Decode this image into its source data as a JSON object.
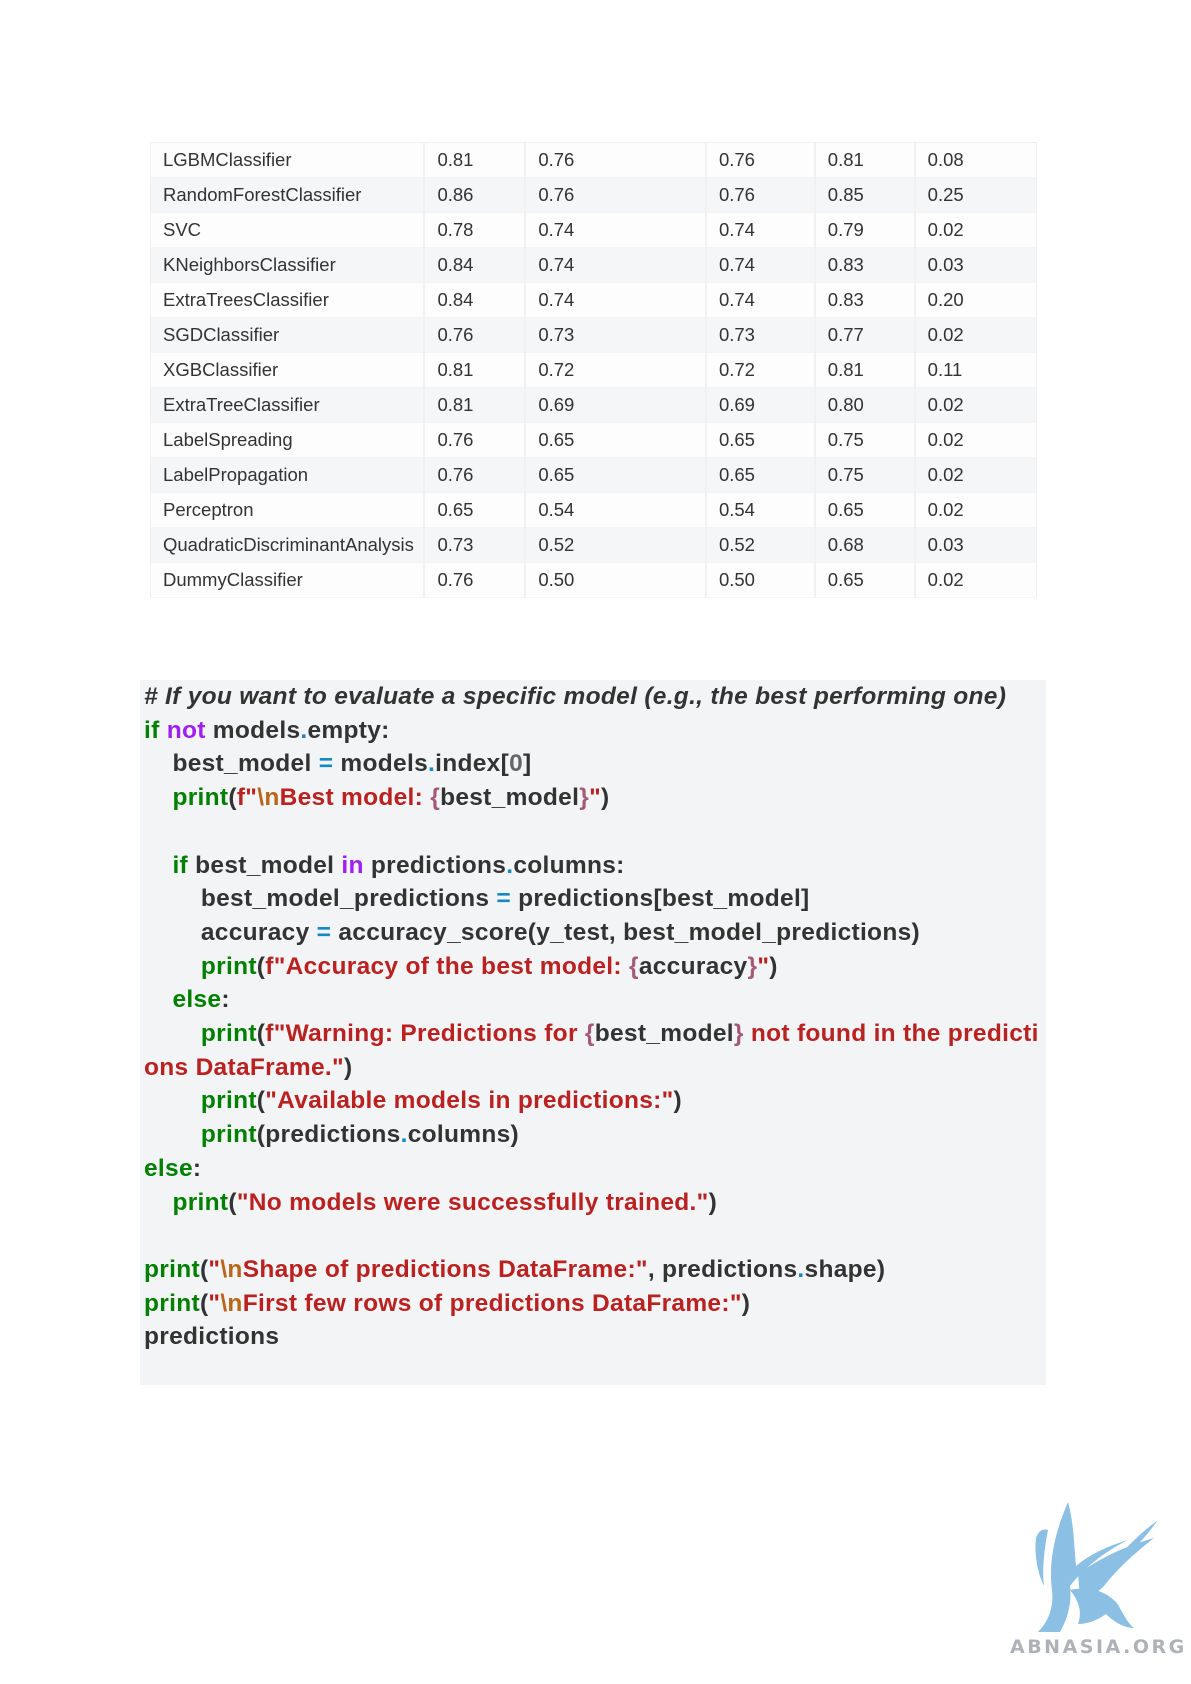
{
  "table": {
    "rows": [
      [
        "LGBMClassifier",
        "0.81",
        "0.76",
        "0.76",
        "0.81",
        "0.08"
      ],
      [
        "RandomForestClassifier",
        "0.86",
        "0.76",
        "0.76",
        "0.85",
        "0.25"
      ],
      [
        "SVC",
        "0.78",
        "0.74",
        "0.74",
        "0.79",
        "0.02"
      ],
      [
        "KNeighborsClassifier",
        "0.84",
        "0.74",
        "0.74",
        "0.83",
        "0.03"
      ],
      [
        "ExtraTreesClassifier",
        "0.84",
        "0.74",
        "0.74",
        "0.83",
        "0.20"
      ],
      [
        "SGDClassifier",
        "0.76",
        "0.73",
        "0.73",
        "0.77",
        "0.02"
      ],
      [
        "XGBClassifier",
        "0.81",
        "0.72",
        "0.72",
        "0.81",
        "0.11"
      ],
      [
        "ExtraTreeClassifier",
        "0.81",
        "0.69",
        "0.69",
        "0.80",
        "0.02"
      ],
      [
        "LabelSpreading",
        "0.76",
        "0.65",
        "0.65",
        "0.75",
        "0.02"
      ],
      [
        "LabelPropagation",
        "0.76",
        "0.65",
        "0.65",
        "0.75",
        "0.02"
      ],
      [
        "Perceptron",
        "0.65",
        "0.54",
        "0.54",
        "0.65",
        "0.02"
      ],
      [
        "QuadraticDiscriminantAnalysis",
        "0.73",
        "0.52",
        "0.52",
        "0.68",
        "0.03"
      ],
      [
        "DummyClassifier",
        "0.76",
        "0.50",
        "0.50",
        "0.65",
        "0.02"
      ]
    ]
  },
  "code": {
    "lines": [
      [
        [
          "comment",
          "# If you want to evaluate a specific model (e.g., the best performing one)"
        ]
      ],
      [
        [
          "keyword",
          "if"
        ],
        [
          "text",
          " "
        ],
        [
          "op-word",
          "not"
        ],
        [
          "text",
          " models"
        ],
        [
          "operator",
          "."
        ],
        [
          "text",
          "empty:"
        ]
      ],
      [
        [
          "text",
          "    best_model "
        ],
        [
          "operator",
          "="
        ],
        [
          "text",
          " models"
        ],
        [
          "operator",
          "."
        ],
        [
          "text",
          "index["
        ],
        [
          "number",
          "0"
        ],
        [
          "text",
          "]"
        ]
      ],
      [
        [
          "text",
          "    "
        ],
        [
          "builtin",
          "print"
        ],
        [
          "text",
          "("
        ],
        [
          "prefix",
          "f\""
        ],
        [
          "escape",
          "\\n"
        ],
        [
          "string",
          "Best model: "
        ],
        [
          "interp",
          "{"
        ],
        [
          "text",
          "best_model"
        ],
        [
          "interp",
          "}"
        ],
        [
          "string",
          "\""
        ],
        [
          "text",
          ")"
        ]
      ],
      [
        [
          "text",
          ""
        ]
      ],
      [
        [
          "text",
          "    "
        ],
        [
          "keyword",
          "if"
        ],
        [
          "text",
          " best_model "
        ],
        [
          "op-word",
          "in"
        ],
        [
          "text",
          " predictions"
        ],
        [
          "operator",
          "."
        ],
        [
          "text",
          "columns:"
        ]
      ],
      [
        [
          "text",
          "        best_model_predictions "
        ],
        [
          "operator",
          "="
        ],
        [
          "text",
          " predictions[best_model]"
        ]
      ],
      [
        [
          "text",
          "        accuracy "
        ],
        [
          "operator",
          "="
        ],
        [
          "text",
          " accuracy_score(y_test, best_model_predictions)"
        ]
      ],
      [
        [
          "text",
          "        "
        ],
        [
          "builtin",
          "print"
        ],
        [
          "text",
          "("
        ],
        [
          "prefix",
          "f\""
        ],
        [
          "string",
          "Accuracy of the best model: "
        ],
        [
          "interp",
          "{"
        ],
        [
          "text",
          "accuracy"
        ],
        [
          "interp",
          "}"
        ],
        [
          "string",
          "\""
        ],
        [
          "text",
          ")"
        ]
      ],
      [
        [
          "text",
          "    "
        ],
        [
          "keyword",
          "else"
        ],
        [
          "text",
          ":"
        ]
      ],
      [
        [
          "text",
          "        "
        ],
        [
          "builtin",
          "print"
        ],
        [
          "text",
          "("
        ],
        [
          "prefix",
          "f\""
        ],
        [
          "string",
          "Warning: Predictions for "
        ],
        [
          "interp",
          "{"
        ],
        [
          "text",
          "best_model"
        ],
        [
          "interp",
          "}"
        ],
        [
          "string",
          " not found in the predictions DataFrame.\""
        ],
        [
          "text",
          ")"
        ]
      ],
      [
        [
          "text",
          "        "
        ],
        [
          "builtin",
          "print"
        ],
        [
          "text",
          "("
        ],
        [
          "string",
          "\"Available models in predictions:\""
        ],
        [
          "text",
          ")"
        ]
      ],
      [
        [
          "text",
          "        "
        ],
        [
          "builtin",
          "print"
        ],
        [
          "text",
          "(predictions"
        ],
        [
          "operator",
          "."
        ],
        [
          "text",
          "columns)"
        ]
      ],
      [
        [
          "keyword",
          "else"
        ],
        [
          "text",
          ":"
        ]
      ],
      [
        [
          "text",
          "    "
        ],
        [
          "builtin",
          "print"
        ],
        [
          "text",
          "("
        ],
        [
          "string",
          "\"No models were successfully trained.\""
        ],
        [
          "text",
          ")"
        ]
      ],
      [
        [
          "text",
          ""
        ]
      ],
      [
        [
          "builtin",
          "print"
        ],
        [
          "text",
          "("
        ],
        [
          "string",
          "\""
        ],
        [
          "escape",
          "\\n"
        ],
        [
          "string",
          "Shape of predictions DataFrame:\""
        ],
        [
          "text",
          ", predictions"
        ],
        [
          "operator",
          "."
        ],
        [
          "text",
          "shape)"
        ]
      ],
      [
        [
          "builtin",
          "print"
        ],
        [
          "text",
          "("
        ],
        [
          "string",
          "\""
        ],
        [
          "escape",
          "\\n"
        ],
        [
          "string",
          "First few rows of predictions DataFrame:\""
        ],
        [
          "text",
          ")"
        ]
      ],
      [
        [
          "text",
          "predictions"
        ]
      ]
    ]
  },
  "logo": {
    "text": "ABNASIA.ORG",
    "color": "#7fb9e0"
  }
}
